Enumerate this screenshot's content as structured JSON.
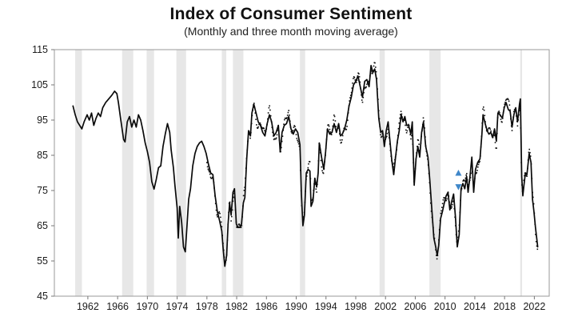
{
  "chart": {
    "title": "Index of Consumer Sentiment",
    "subtitle": "(Monthly and three month moving average)"
  },
  "chart_data": {
    "type": "line",
    "title": "Index of Consumer Sentiment",
    "subtitle": "(Monthly and three month moving average)",
    "xlabel": "",
    "ylabel": "",
    "xlim": [
      1957.5,
      2024.0
    ],
    "ylim": [
      45,
      115
    ],
    "x_ticks": [
      1962,
      1966,
      1970,
      1974,
      1978,
      1982,
      1986,
      1990,
      1994,
      1998,
      2002,
      2006,
      2010,
      2014,
      2018,
      2022
    ],
    "y_ticks": [
      45,
      55,
      65,
      75,
      85,
      95,
      105,
      115
    ],
    "grid": false,
    "legend": "none",
    "line_color": "#0a0a0a",
    "band_color": "#e7e7e7",
    "marker_color": "#3f87c9",
    "monthly_dots_start_year": 1978.0,
    "shaded_periods": [
      [
        1960.3,
        1961.2
      ],
      [
        1966.6,
        1968.1
      ],
      [
        1969.9,
        1970.9
      ],
      [
        1973.9,
        1975.2
      ],
      [
        1980.0,
        1980.6
      ],
      [
        1981.5,
        1982.9
      ],
      [
        1990.5,
        1991.2
      ],
      [
        2001.2,
        2001.9
      ],
      [
        2007.9,
        2009.4
      ],
      [
        2020.1,
        2020.35
      ]
    ],
    "annotations": [
      {
        "type": "triangle-up",
        "x": 2011.8,
        "y": 80,
        "color": "#3f87c9"
      },
      {
        "type": "triangle-down",
        "x": 2011.8,
        "y": 76,
        "color": "#3f87c9"
      }
    ],
    "series": [
      {
        "name": "Monthly",
        "style": "dotted",
        "note": "monthly readings drawn as small dots scattered around the moving average from 1978 onward"
      },
      {
        "name": "Three month moving average",
        "style": "solid",
        "points": [
          [
            1960.0,
            99
          ],
          [
            1960.3,
            96.5
          ],
          [
            1960.6,
            94.5
          ],
          [
            1960.9,
            93.5
          ],
          [
            1961.2,
            92.5
          ],
          [
            1961.5,
            94.5
          ],
          [
            1961.9,
            96.5
          ],
          [
            1962.2,
            95
          ],
          [
            1962.5,
            97
          ],
          [
            1962.8,
            93.5
          ],
          [
            1963.1,
            95.5
          ],
          [
            1963.4,
            97
          ],
          [
            1963.7,
            96
          ],
          [
            1964.0,
            98.5
          ],
          [
            1964.4,
            100
          ],
          [
            1964.8,
            101
          ],
          [
            1965.2,
            102
          ],
          [
            1965.6,
            103.2
          ],
          [
            1965.9,
            102.5
          ],
          [
            1966.1,
            100
          ],
          [
            1966.4,
            95.5
          ],
          [
            1966.8,
            89.5
          ],
          [
            1967.0,
            88.8
          ],
          [
            1967.3,
            94.5
          ],
          [
            1967.6,
            96
          ],
          [
            1967.9,
            93
          ],
          [
            1968.2,
            95
          ],
          [
            1968.5,
            93
          ],
          [
            1968.8,
            96.5
          ],
          [
            1969.1,
            95
          ],
          [
            1969.4,
            92
          ],
          [
            1969.7,
            88.5
          ],
          [
            1970.0,
            86
          ],
          [
            1970.3,
            83
          ],
          [
            1970.6,
            77.5
          ],
          [
            1970.9,
            75.4
          ],
          [
            1971.2,
            78.2
          ],
          [
            1971.5,
            81.5
          ],
          [
            1971.8,
            82
          ],
          [
            1972.1,
            87.5
          ],
          [
            1972.4,
            91
          ],
          [
            1972.7,
            94
          ],
          [
            1973.0,
            91.5
          ],
          [
            1973.2,
            86.5
          ],
          [
            1973.5,
            81.5
          ],
          [
            1973.7,
            76.5
          ],
          [
            1974.0,
            70
          ],
          [
            1974.15,
            61.5
          ],
          [
            1974.35,
            70.5
          ],
          [
            1974.6,
            66
          ],
          [
            1974.85,
            59
          ],
          [
            1975.1,
            57.6
          ],
          [
            1975.35,
            66
          ],
          [
            1975.55,
            72.5
          ],
          [
            1975.8,
            75.5
          ],
          [
            1976.1,
            82
          ],
          [
            1976.4,
            85.5
          ],
          [
            1976.7,
            87.5
          ],
          [
            1977.0,
            88.5
          ],
          [
            1977.3,
            89
          ],
          [
            1977.6,
            87.5
          ],
          [
            1977.9,
            85.5
          ],
          [
            1978.2,
            82.5
          ],
          [
            1978.5,
            80
          ],
          [
            1978.8,
            79.5
          ],
          [
            1979.1,
            73.5
          ],
          [
            1979.4,
            69
          ],
          [
            1979.7,
            66.5
          ],
          [
            1980.0,
            63.5
          ],
          [
            1980.2,
            58
          ],
          [
            1980.4,
            53.5
          ],
          [
            1980.65,
            56.5
          ],
          [
            1980.85,
            65.5
          ],
          [
            1981.05,
            71.5
          ],
          [
            1981.25,
            68
          ],
          [
            1981.5,
            74.5
          ],
          [
            1981.7,
            75.5
          ],
          [
            1981.95,
            65.5
          ],
          [
            1982.15,
            64.5
          ],
          [
            1982.4,
            64.5
          ],
          [
            1982.65,
            65.5
          ],
          [
            1982.9,
            71.5
          ],
          [
            1983.1,
            73
          ],
          [
            1983.35,
            84
          ],
          [
            1983.6,
            92
          ],
          [
            1983.85,
            90.5
          ],
          [
            1984.05,
            97
          ],
          [
            1984.3,
            99.5
          ],
          [
            1984.6,
            97
          ],
          [
            1984.9,
            94.5
          ],
          [
            1985.2,
            93.5
          ],
          [
            1985.5,
            91.5
          ],
          [
            1985.8,
            90.5
          ],
          [
            1986.1,
            94
          ],
          [
            1986.4,
            96.5
          ],
          [
            1986.7,
            94.5
          ],
          [
            1987.0,
            90.5
          ],
          [
            1987.3,
            91.5
          ],
          [
            1987.6,
            93.5
          ],
          [
            1987.85,
            86
          ],
          [
            1988.1,
            91.5
          ],
          [
            1988.4,
            93.5
          ],
          [
            1988.7,
            94
          ],
          [
            1989.0,
            96
          ],
          [
            1989.3,
            92.5
          ],
          [
            1989.6,
            91
          ],
          [
            1989.9,
            92.5
          ],
          [
            1990.2,
            91.5
          ],
          [
            1990.5,
            88
          ],
          [
            1990.7,
            74
          ],
          [
            1990.9,
            65
          ],
          [
            1991.1,
            68
          ],
          [
            1991.35,
            80
          ],
          [
            1991.6,
            81
          ],
          [
            1991.85,
            80.5
          ],
          [
            1992.0,
            70.5
          ],
          [
            1992.25,
            72
          ],
          [
            1992.5,
            78.5
          ],
          [
            1992.75,
            76
          ],
          [
            1992.95,
            80
          ],
          [
            1993.1,
            88.5
          ],
          [
            1993.4,
            84.5
          ],
          [
            1993.7,
            81
          ],
          [
            1993.95,
            86
          ],
          [
            1994.2,
            92.5
          ],
          [
            1994.5,
            91
          ],
          [
            1994.8,
            91.5
          ],
          [
            1995.1,
            94
          ],
          [
            1995.4,
            91.5
          ],
          [
            1995.7,
            94
          ],
          [
            1995.95,
            90.5
          ],
          [
            1996.2,
            91
          ],
          [
            1996.5,
            92.5
          ],
          [
            1996.8,
            95
          ],
          [
            1997.1,
            99
          ],
          [
            1997.4,
            101.5
          ],
          [
            1997.7,
            105
          ],
          [
            1998.0,
            106
          ],
          [
            1998.3,
            107.5
          ],
          [
            1998.6,
            104.5
          ],
          [
            1998.9,
            101.5
          ],
          [
            1999.2,
            106
          ],
          [
            1999.5,
            106.5
          ],
          [
            1999.8,
            104.5
          ],
          [
            2000.05,
            110.5
          ],
          [
            2000.3,
            108.5
          ],
          [
            2000.55,
            109.5
          ],
          [
            2000.8,
            106.5
          ],
          [
            2001.1,
            95.5
          ],
          [
            2001.35,
            91.5
          ],
          [
            2001.6,
            92
          ],
          [
            2001.85,
            87.5
          ],
          [
            2002.1,
            92
          ],
          [
            2002.35,
            94.5
          ],
          [
            2002.6,
            89
          ],
          [
            2002.85,
            83.5
          ],
          [
            2003.1,
            79.5
          ],
          [
            2003.35,
            84.5
          ],
          [
            2003.6,
            89
          ],
          [
            2003.85,
            92
          ],
          [
            2004.1,
            96.5
          ],
          [
            2004.35,
            94.5
          ],
          [
            2004.6,
            96
          ],
          [
            2004.85,
            93.5
          ],
          [
            2005.1,
            93.5
          ],
          [
            2005.4,
            91
          ],
          [
            2005.6,
            94.5
          ],
          [
            2005.85,
            76.5
          ],
          [
            2006.1,
            84
          ],
          [
            2006.35,
            87.5
          ],
          [
            2006.6,
            84.5
          ],
          [
            2006.85,
            91.5
          ],
          [
            2007.1,
            94.5
          ],
          [
            2007.4,
            87.5
          ],
          [
            2007.7,
            84.5
          ],
          [
            2007.95,
            78
          ],
          [
            2008.2,
            70.5
          ],
          [
            2008.5,
            61.5
          ],
          [
            2008.75,
            59
          ],
          [
            2008.95,
            56.5
          ],
          [
            2009.15,
            59.5
          ],
          [
            2009.4,
            67
          ],
          [
            2009.65,
            69
          ],
          [
            2009.9,
            71.5
          ],
          [
            2010.15,
            73.5
          ],
          [
            2010.4,
            74.5
          ],
          [
            2010.65,
            69.5
          ],
          [
            2010.9,
            72
          ],
          [
            2011.15,
            74
          ],
          [
            2011.4,
            67.5
          ],
          [
            2011.65,
            59
          ],
          [
            2011.9,
            62.5
          ],
          [
            2012.15,
            75.5
          ],
          [
            2012.4,
            77
          ],
          [
            2012.65,
            75.5
          ],
          [
            2012.9,
            79
          ],
          [
            2013.1,
            74.5
          ],
          [
            2013.35,
            79
          ],
          [
            2013.6,
            84.5
          ],
          [
            2013.85,
            74.5
          ],
          [
            2014.1,
            81
          ],
          [
            2014.4,
            83
          ],
          [
            2014.7,
            84
          ],
          [
            2014.95,
            91
          ],
          [
            2015.1,
            96.5
          ],
          [
            2015.4,
            94
          ],
          [
            2015.65,
            92
          ],
          [
            2015.9,
            91
          ],
          [
            2016.15,
            91.5
          ],
          [
            2016.4,
            90
          ],
          [
            2016.65,
            92.5
          ],
          [
            2016.9,
            89
          ],
          [
            2017.1,
            97
          ],
          [
            2017.4,
            96.5
          ],
          [
            2017.7,
            95.5
          ],
          [
            2017.95,
            98.5
          ],
          [
            2018.2,
            100
          ],
          [
            2018.5,
            98
          ],
          [
            2018.75,
            97.5
          ],
          [
            2019.0,
            93
          ],
          [
            2019.25,
            96.5
          ],
          [
            2019.5,
            98.5
          ],
          [
            2019.75,
            94.5
          ],
          [
            2020.0,
            99.5
          ],
          [
            2020.12,
            101
          ],
          [
            2020.3,
            79
          ],
          [
            2020.45,
            73.5
          ],
          [
            2020.6,
            76.5
          ],
          [
            2020.8,
            80
          ],
          [
            2021.0,
            79.5
          ],
          [
            2021.3,
            85.5
          ],
          [
            2021.55,
            83
          ],
          [
            2021.75,
            72.5
          ],
          [
            2021.95,
            69
          ],
          [
            2022.15,
            64.5
          ],
          [
            2022.35,
            61
          ],
          [
            2022.45,
            59
          ]
        ]
      }
    ]
  }
}
